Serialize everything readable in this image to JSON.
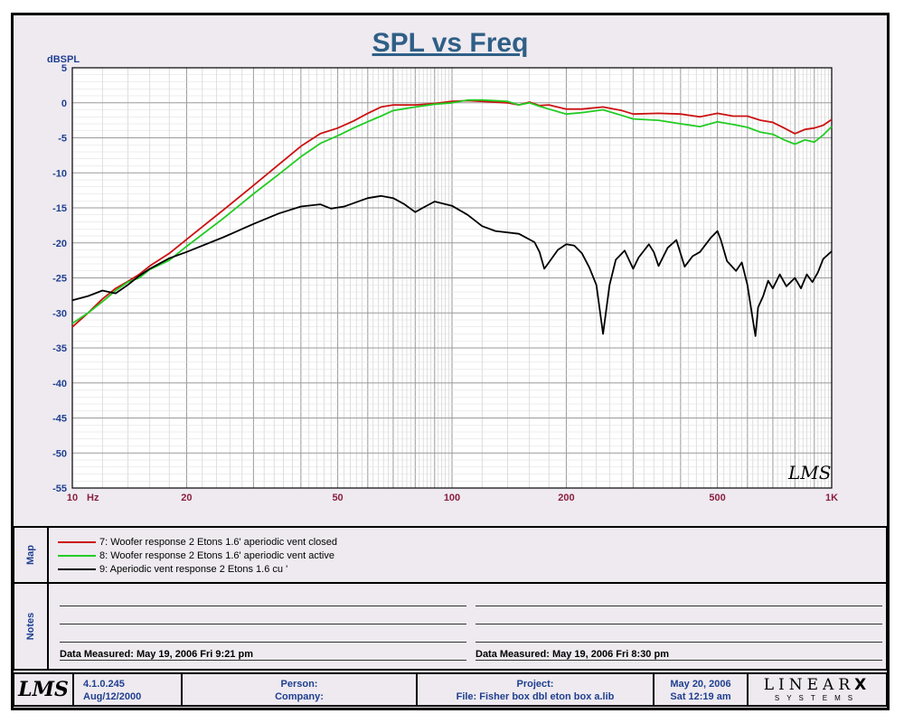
{
  "chart_data": {
    "type": "line",
    "title": "SPL vs Freq",
    "ylabel": "dBSPL",
    "xlabel": "Hz",
    "x_scale": "log",
    "xlim": [
      10,
      1000
    ],
    "ylim": [
      -55,
      5
    ],
    "y_ticks": [
      5,
      0,
      -5,
      -10,
      -15,
      -20,
      -25,
      -30,
      -35,
      -40,
      -45,
      -50,
      -55
    ],
    "x_tick_labels": [
      {
        "value": 10,
        "label": "10"
      },
      {
        "value": 20,
        "label": "20"
      },
      {
        "value": 50,
        "label": "50"
      },
      {
        "value": 100,
        "label": "100"
      },
      {
        "value": 200,
        "label": "200"
      },
      {
        "value": 500,
        "label": "500"
      },
      {
        "value": 1000,
        "label": "1K"
      }
    ],
    "grid": true,
    "watermark": "LMS",
    "series": [
      {
        "name": "7: Woofer response 2 Etons 1.6' aperiodic vent closed",
        "color": "#cc1111",
        "points": [
          [
            10,
            -32
          ],
          [
            11,
            -30
          ],
          [
            12,
            -28
          ],
          [
            13,
            -26.5
          ],
          [
            14,
            -25.5
          ],
          [
            15,
            -24.5
          ],
          [
            16,
            -23.3
          ],
          [
            18,
            -21.5
          ],
          [
            20,
            -19.5
          ],
          [
            25,
            -15.3
          ],
          [
            30,
            -11.8
          ],
          [
            35,
            -8.8
          ],
          [
            40,
            -6.2
          ],
          [
            45,
            -4.4
          ],
          [
            50,
            -3.6
          ],
          [
            55,
            -2.6
          ],
          [
            60,
            -1.5
          ],
          [
            65,
            -0.6
          ],
          [
            70,
            -0.3
          ],
          [
            80,
            -0.3
          ],
          [
            90,
            -0.1
          ],
          [
            100,
            0.2
          ],
          [
            110,
            0.3
          ],
          [
            120,
            0.2
          ],
          [
            140,
            0
          ],
          [
            150,
            -0.3
          ],
          [
            160,
            0.1
          ],
          [
            170,
            -0.4
          ],
          [
            180,
            -0.3
          ],
          [
            200,
            -0.9
          ],
          [
            220,
            -0.9
          ],
          [
            250,
            -0.6
          ],
          [
            280,
            -1.1
          ],
          [
            300,
            -1.6
          ],
          [
            350,
            -1.5
          ],
          [
            400,
            -1.6
          ],
          [
            450,
            -2
          ],
          [
            500,
            -1.5
          ],
          [
            550,
            -1.9
          ],
          [
            600,
            -1.9
          ],
          [
            650,
            -2.5
          ],
          [
            700,
            -2.8
          ],
          [
            750,
            -3.6
          ],
          [
            800,
            -4.4
          ],
          [
            850,
            -3.8
          ],
          [
            900,
            -3.6
          ],
          [
            950,
            -3.2
          ],
          [
            1000,
            -2.4
          ]
        ]
      },
      {
        "name": "8: Woofer response 2 Etons 1.6' aperiodic vent active",
        "color": "#22cc22",
        "points": [
          [
            10,
            -31.5
          ],
          [
            11,
            -30
          ],
          [
            12,
            -28.4
          ],
          [
            13,
            -26.8
          ],
          [
            14,
            -25.6
          ],
          [
            15,
            -25
          ],
          [
            16,
            -23.8
          ],
          [
            18,
            -22.5
          ],
          [
            20,
            -20.5
          ],
          [
            25,
            -16.5
          ],
          [
            30,
            -13
          ],
          [
            35,
            -10.2
          ],
          [
            40,
            -7.7
          ],
          [
            45,
            -5.8
          ],
          [
            50,
            -4.7
          ],
          [
            55,
            -3.6
          ],
          [
            60,
            -2.7
          ],
          [
            65,
            -1.9
          ],
          [
            70,
            -1.1
          ],
          [
            80,
            -0.6
          ],
          [
            90,
            -0.2
          ],
          [
            100,
            0
          ],
          [
            110,
            0.4
          ],
          [
            120,
            0.4
          ],
          [
            140,
            0.2
          ],
          [
            150,
            -0.3
          ],
          [
            160,
            0
          ],
          [
            170,
            -0.5
          ],
          [
            180,
            -0.9
          ],
          [
            200,
            -1.6
          ],
          [
            220,
            -1.4
          ],
          [
            250,
            -1
          ],
          [
            280,
            -1.8
          ],
          [
            300,
            -2.3
          ],
          [
            350,
            -2.5
          ],
          [
            400,
            -3
          ],
          [
            450,
            -3.4
          ],
          [
            500,
            -2.7
          ],
          [
            550,
            -3.1
          ],
          [
            600,
            -3.5
          ],
          [
            650,
            -4.2
          ],
          [
            700,
            -4.5
          ],
          [
            750,
            -5.3
          ],
          [
            800,
            -5.9
          ],
          [
            850,
            -5.3
          ],
          [
            900,
            -5.6
          ],
          [
            950,
            -4.6
          ],
          [
            1000,
            -3.4
          ]
        ]
      },
      {
        "name": "9: Aperiodic vent response 2 Etons 1.6 cu '",
        "color": "#000000",
        "points": [
          [
            10,
            -28.2
          ],
          [
            11,
            -27.6
          ],
          [
            12,
            -26.8
          ],
          [
            13,
            -27.2
          ],
          [
            14,
            -26
          ],
          [
            15,
            -24.7
          ],
          [
            16,
            -23.7
          ],
          [
            18,
            -22.2
          ],
          [
            20,
            -21.3
          ],
          [
            25,
            -19.2
          ],
          [
            30,
            -17.3
          ],
          [
            35,
            -15.8
          ],
          [
            40,
            -14.8
          ],
          [
            45,
            -14.5
          ],
          [
            48,
            -15.1
          ],
          [
            52,
            -14.8
          ],
          [
            60,
            -13.6
          ],
          [
            65,
            -13.3
          ],
          [
            70,
            -13.6
          ],
          [
            75,
            -14.5
          ],
          [
            80,
            -15.6
          ],
          [
            85,
            -14.8
          ],
          [
            90,
            -14.1
          ],
          [
            100,
            -14.7
          ],
          [
            110,
            -16
          ],
          [
            120,
            -17.6
          ],
          [
            130,
            -18.3
          ],
          [
            150,
            -18.7
          ],
          [
            165,
            -19.9
          ],
          [
            170,
            -21.3
          ],
          [
            175,
            -23.7
          ],
          [
            180,
            -22.8
          ],
          [
            190,
            -21
          ],
          [
            200,
            -20.2
          ],
          [
            210,
            -20.4
          ],
          [
            220,
            -21.5
          ],
          [
            230,
            -23.5
          ],
          [
            240,
            -26
          ],
          [
            250,
            -33
          ],
          [
            260,
            -26
          ],
          [
            270,
            -22.4
          ],
          [
            285,
            -21.1
          ],
          [
            300,
            -23.7
          ],
          [
            310,
            -22.1
          ],
          [
            330,
            -20.2
          ],
          [
            340,
            -21.3
          ],
          [
            350,
            -23.3
          ],
          [
            370,
            -20.7
          ],
          [
            390,
            -19.6
          ],
          [
            410,
            -23.4
          ],
          [
            430,
            -21.9
          ],
          [
            450,
            -21.3
          ],
          [
            480,
            -19.3
          ],
          [
            500,
            -18.3
          ],
          [
            510,
            -19.5
          ],
          [
            530,
            -22.6
          ],
          [
            560,
            -24
          ],
          [
            580,
            -22.8
          ],
          [
            600,
            -26
          ],
          [
            620,
            -31
          ],
          [
            630,
            -33.3
          ],
          [
            640,
            -29.2
          ],
          [
            660,
            -27.6
          ],
          [
            680,
            -25.4
          ],
          [
            700,
            -26.5
          ],
          [
            730,
            -24.5
          ],
          [
            760,
            -26.2
          ],
          [
            800,
            -25
          ],
          [
            830,
            -26.5
          ],
          [
            860,
            -24.5
          ],
          [
            890,
            -25.6
          ],
          [
            920,
            -24.2
          ],
          [
            950,
            -22.3
          ],
          [
            1000,
            -21.2
          ]
        ]
      }
    ]
  },
  "map_section": {
    "label": "Map",
    "entries": [
      {
        "text": "7: Woofer response 2 Etons 1.6' aperiodic vent closed",
        "color": "#cc1111"
      },
      {
        "text": "8: Woofer response 2 Etons 1.6' aperiodic vent active",
        "color": "#22cc22"
      },
      {
        "text": "9: Aperiodic vent response 2 Etons 1.6 cu '",
        "color": "#000000"
      }
    ]
  },
  "notes_section": {
    "label": "Notes",
    "left_measured": "Data Measured: May 19, 2006  Fri  9:21 pm",
    "right_measured": "Data Measured: May 19, 2006  Fri  8:30 pm"
  },
  "footer": {
    "logo": "LMS",
    "version": "4.1.0.245",
    "version_date": "Aug/12/2000",
    "person_label": "Person:",
    "company_label": "Company:",
    "project_label": "Project:",
    "file_label": "File: Fisher box dbl eton box a.lib",
    "date": "May 20, 2006",
    "day_time": "Sat 12:19 am",
    "brand_top": "LINEAR",
    "brand_x": "X",
    "brand_bottom": "SYSTEMS"
  }
}
